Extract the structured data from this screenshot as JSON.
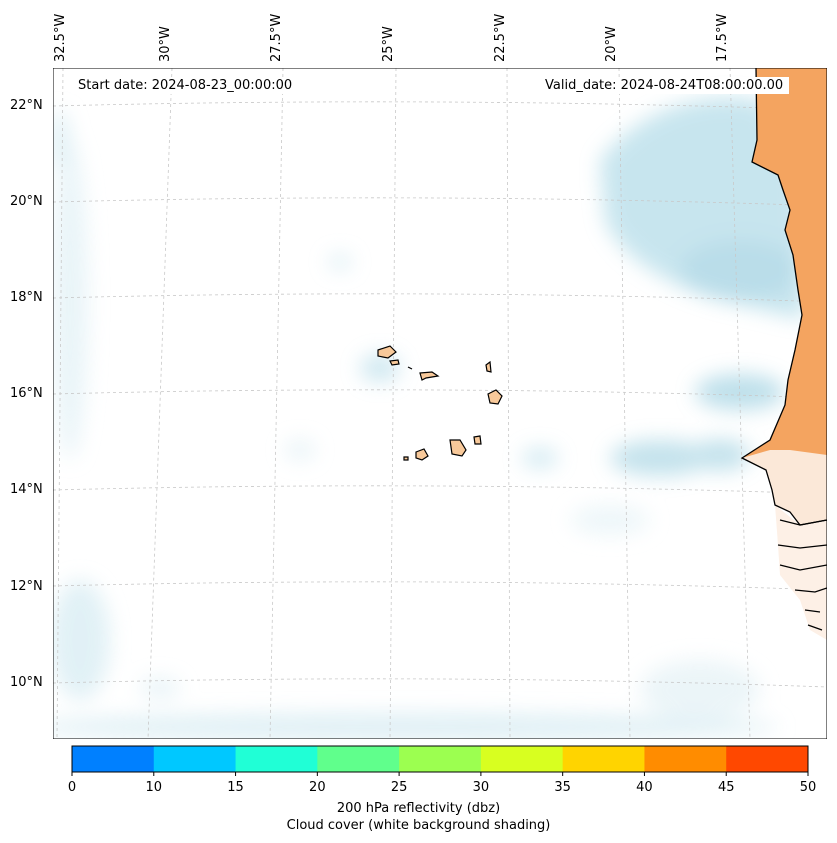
{
  "map": {
    "start_date_text": "Start date: 2024-08-23_00:00:00",
    "valid_date_text": "Valid_date: 2024-08-24T08:00:00.00",
    "lon_labels": [
      "32.5°W",
      "30°W",
      "27.5°W",
      "25°W",
      "22.5°W",
      "20°W",
      "17.5°W"
    ],
    "lat_labels": [
      "22°N",
      "20°N",
      "18°N",
      "16°N",
      "14°N",
      "12°N",
      "10°N"
    ],
    "land_color": "#f4a460",
    "coast_color": "#000000",
    "cloud_color": "#add8e6"
  },
  "colorbar": {
    "ticks": [
      "0",
      "10",
      "15",
      "20",
      "25",
      "30",
      "35",
      "40",
      "45",
      "50"
    ],
    "colors": [
      "#0080ff",
      "#00c8ff",
      "#20ffd6",
      "#60ff8c",
      "#9cff50",
      "#d8ff20",
      "#ffd400",
      "#ff8c00",
      "#ff4800"
    ],
    "label_line1": "200 hPa reflectivity (dbz)",
    "label_line2": "Cloud cover (white background shading)"
  }
}
